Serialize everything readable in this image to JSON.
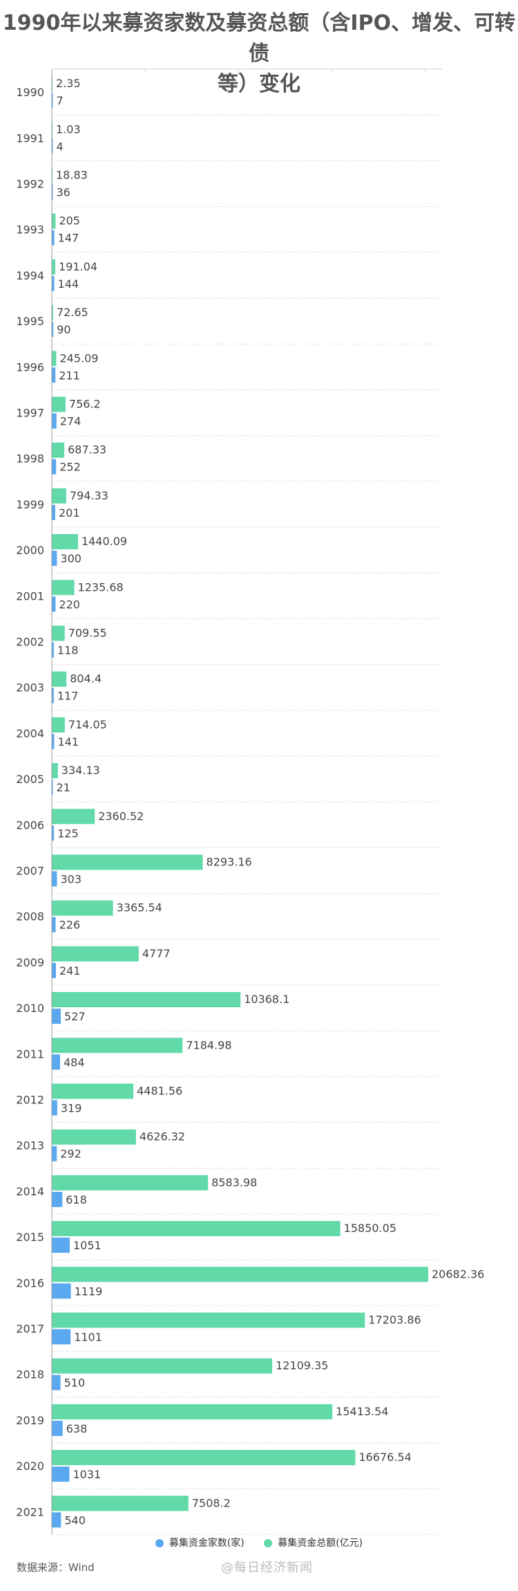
{
  "title_line1": "1990年以来募资家数及募资总额（含IPO、增发、可转债",
  "title_line2": "等）变化",
  "source": "数据来源：Wind",
  "watermark": "@每日经济新闻",
  "chart_data": {
    "type": "bar",
    "orientation": "horizontal",
    "categories": [
      "1990",
      "1991",
      "1992",
      "1993",
      "1994",
      "1995",
      "1996",
      "1997",
      "1998",
      "1999",
      "2000",
      "2001",
      "2002",
      "2003",
      "2004",
      "2005",
      "2006",
      "2007",
      "2008",
      "2009",
      "2010",
      "2011",
      "2012",
      "2013",
      "2014",
      "2015",
      "2016",
      "2017",
      "2018",
      "2019",
      "2020",
      "2021"
    ],
    "series": [
      {
        "name": "募集资金总额(亿元)",
        "color": "#62d9a9",
        "labels": [
          "2.35",
          "1.03",
          "18.83",
          "205",
          "191.04",
          "72.65",
          "245.09",
          "756.2",
          "687.33",
          "794.33",
          "1440.09",
          "1235.68",
          "709.55",
          "804.4",
          "714.05",
          "334.13",
          "2360.52",
          "8293.16",
          "3365.54",
          "4777",
          "10368.1",
          "7184.98",
          "4481.56",
          "4626.32",
          "8583.98",
          "15850.05",
          "20682.36",
          "17203.86",
          "12109.35",
          "15413.54",
          "16676.54",
          "7508.2"
        ],
        "values": [
          2.35,
          1.03,
          18.83,
          205,
          191.04,
          72.65,
          245.09,
          756.2,
          687.33,
          794.33,
          1440.09,
          1235.68,
          709.55,
          804.4,
          714.05,
          334.13,
          2360.52,
          8293.16,
          3365.54,
          4777,
          10368.1,
          7184.98,
          4481.56,
          4626.32,
          8583.98,
          15850.05,
          20682.36,
          17203.86,
          12109.35,
          15413.54,
          16676.54,
          7508.2
        ]
      },
      {
        "name": "募集资金家数(家)",
        "color": "#5aa9f0",
        "labels": [
          "7",
          "4",
          "36",
          "147",
          "144",
          "90",
          "211",
          "274",
          "252",
          "201",
          "300",
          "220",
          "118",
          "117",
          "141",
          "21",
          "125",
          "303",
          "226",
          "241",
          "527",
          "484",
          "319",
          "292",
          "618",
          "1051",
          "1119",
          "1101",
          "510",
          "638",
          "1031",
          "540"
        ],
        "values": [
          7,
          4,
          36,
          147,
          144,
          90,
          211,
          274,
          252,
          201,
          300,
          220,
          118,
          117,
          141,
          21,
          125,
          303,
          226,
          241,
          527,
          484,
          319,
          292,
          618,
          1051,
          1119,
          1101,
          510,
          638,
          1031,
          540
        ]
      }
    ],
    "grid": true,
    "legend_position": "bottom"
  }
}
